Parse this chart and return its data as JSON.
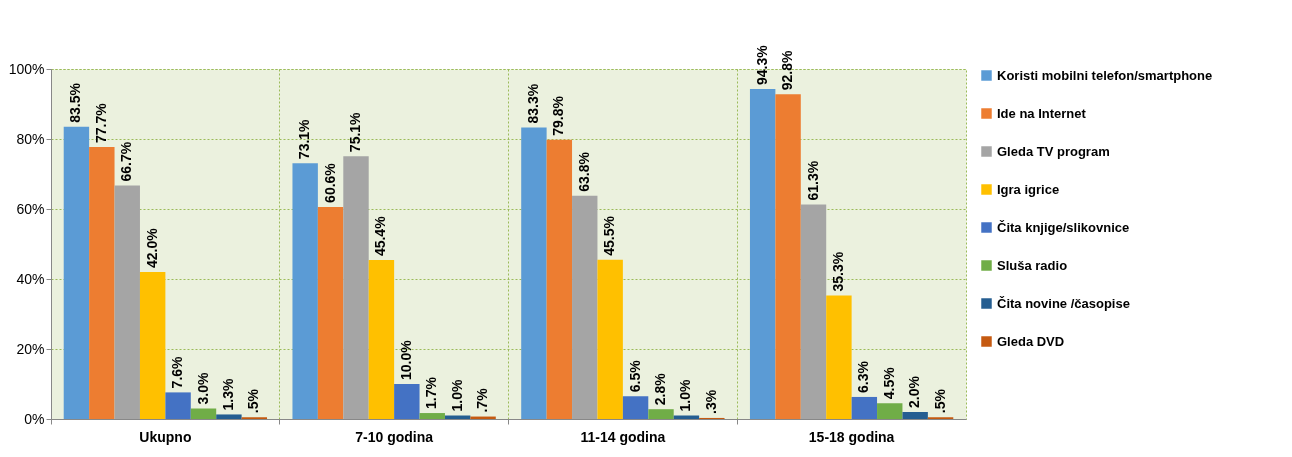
{
  "chart_data": {
    "type": "bar",
    "categories": [
      "Ukupno",
      "7-10 godina",
      "11-14 godina",
      "15-18 godina"
    ],
    "series": [
      {
        "name": "Koristi mobilni telefon/smartphone",
        "color": "#5b9bd5",
        "values": [
          83.5,
          73.1,
          83.3,
          94.3
        ],
        "value_labels": [
          "83.5%",
          "73.1%",
          "83.3%",
          "94.3%"
        ]
      },
      {
        "name": "Ide na Internet",
        "color": "#ed7d31",
        "values": [
          77.7,
          60.6,
          79.8,
          92.8
        ],
        "value_labels": [
          "77.7%",
          "60.6%",
          "79.8%",
          "92.8%"
        ]
      },
      {
        "name": "Gleda TV program",
        "color": "#a5a5a5",
        "values": [
          66.7,
          75.1,
          63.8,
          61.3
        ],
        "value_labels": [
          "66.7%",
          "75.1%",
          "63.8%",
          "61.3%"
        ]
      },
      {
        "name": "Igra igrice",
        "color": "#ffc000",
        "values": [
          42.0,
          45.4,
          45.5,
          35.3
        ],
        "value_labels": [
          "42.0%",
          "45.4%",
          "45.5%",
          "35.3%"
        ]
      },
      {
        "name": "Čita knjige/slikovnice",
        "color": "#4472c4",
        "values": [
          7.6,
          10.0,
          6.5,
          6.3
        ],
        "value_labels": [
          "7.6%",
          "10.0%",
          "6.5%",
          "6.3%"
        ]
      },
      {
        "name": "Sluša radio",
        "color": "#70ad47",
        "values": [
          3.0,
          1.7,
          2.8,
          4.5
        ],
        "value_labels": [
          "3.0%",
          "1.7%",
          "2.8%",
          "4.5%"
        ]
      },
      {
        "name": "Čita novine /časopise",
        "color": "#255e91",
        "values": [
          1.3,
          1.0,
          1.0,
          2.0
        ],
        "value_labels": [
          "1.3%",
          "1.0%",
          "1.0%",
          "2.0%"
        ]
      },
      {
        "name": "Gleda DVD",
        "color": "#c55a11",
        "values": [
          0.5,
          0.7,
          0.3,
          0.5
        ],
        "value_labels": [
          ".5%",
          ".7%",
          ".3%",
          ".5%"
        ]
      }
    ],
    "ylim": [
      0,
      100
    ],
    "yticks": [
      {
        "value": 0,
        "label": "0%"
      },
      {
        "value": 20,
        "label": "20%"
      },
      {
        "value": 40,
        "label": "40%"
      },
      {
        "value": 60,
        "label": "60%"
      },
      {
        "value": 80,
        "label": "80%"
      },
      {
        "value": 100,
        "label": "100%"
      }
    ],
    "grid": true,
    "legend": "right"
  }
}
